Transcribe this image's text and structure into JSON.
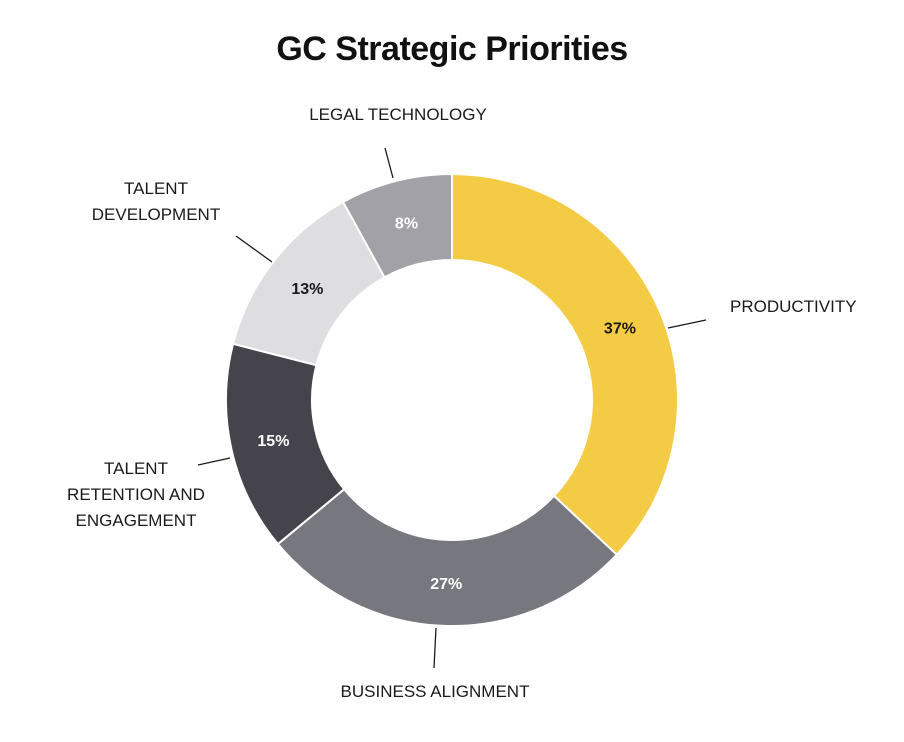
{
  "chart_data": {
    "type": "pie",
    "title": "GC Strategic Priorities",
    "donut": true,
    "slices": [
      {
        "label": [
          "PRODUCTIVITY"
        ],
        "value": 37,
        "value_label": "37%",
        "color": "#F3CB45",
        "text_color": "#1a1a1a"
      },
      {
        "label": [
          "BUSINESS ALIGNMENT"
        ],
        "value": 27,
        "value_label": "27%",
        "color": "#76777F",
        "text_color": "#ffffff"
      },
      {
        "label": [
          "TALENT",
          "RETENTION AND",
          "ENGAGEMENT"
        ],
        "value": 15,
        "value_label": "15%",
        "color": "#45434C",
        "text_color": "#ffffff"
      },
      {
        "label": [
          "TALENT",
          "DEVELOPMENT"
        ],
        "value": 13,
        "value_label": "13%",
        "color": "#DEDEE0",
        "text_color": "#1a1a1a"
      },
      {
        "label": [
          "LEGAL TECHNOLOGY"
        ],
        "value": 8,
        "value_label": "8%",
        "color": "#A1A1A7",
        "text_color": "#ffffff"
      }
    ]
  }
}
